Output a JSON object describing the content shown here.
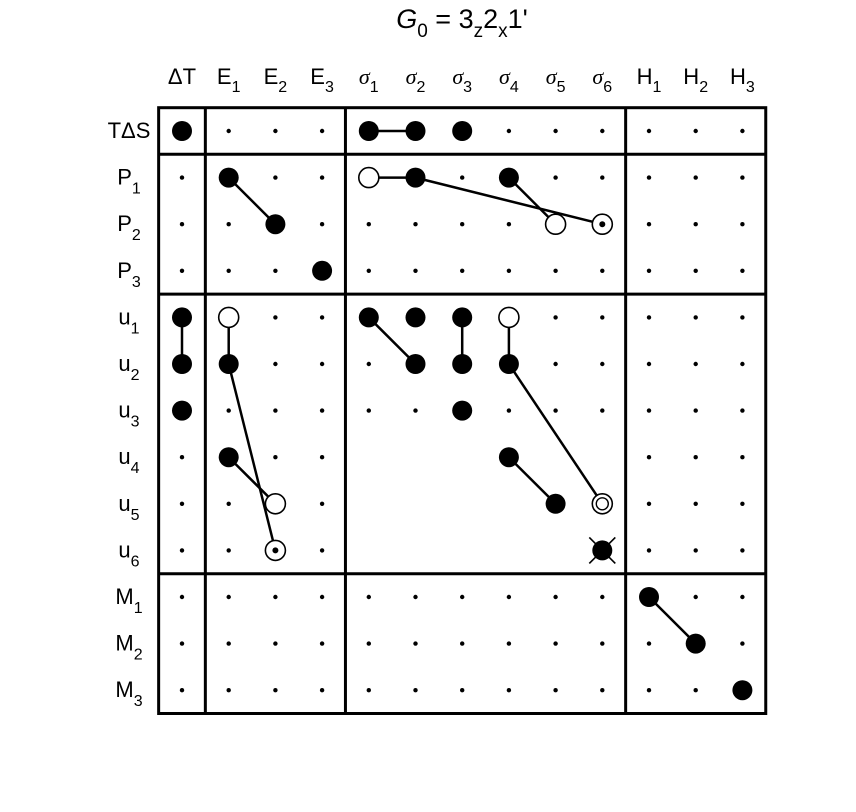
{
  "title": {
    "symbol": "G",
    "symbol_sub": "0",
    "equals": " = 3",
    "sub1": "z",
    "mid": "2",
    "sub2": "x",
    "tail": "1'"
  },
  "columns": [
    {
      "main": "ΔT",
      "sub": ""
    },
    {
      "main": "E",
      "sub": "1"
    },
    {
      "main": "E",
      "sub": "2"
    },
    {
      "main": "E",
      "sub": "3"
    },
    {
      "main": "σ",
      "sub": "1",
      "greek": true
    },
    {
      "main": "σ",
      "sub": "2",
      "greek": true
    },
    {
      "main": "σ",
      "sub": "3",
      "greek": true
    },
    {
      "main": "σ",
      "sub": "4",
      "greek": true
    },
    {
      "main": "σ",
      "sub": "5",
      "greek": true
    },
    {
      "main": "σ",
      "sub": "6",
      "greek": true
    },
    {
      "main": "H",
      "sub": "1"
    },
    {
      "main": "H",
      "sub": "2"
    },
    {
      "main": "H",
      "sub": "3"
    }
  ],
  "rows": [
    {
      "main": "TΔS",
      "sub": ""
    },
    {
      "main": "P",
      "sub": "1"
    },
    {
      "main": "P",
      "sub": "2"
    },
    {
      "main": "P",
      "sub": "3"
    },
    {
      "main": "u",
      "sub": "1"
    },
    {
      "main": "u",
      "sub": "2"
    },
    {
      "main": "u",
      "sub": "3"
    },
    {
      "main": "u",
      "sub": "4"
    },
    {
      "main": "u",
      "sub": "5"
    },
    {
      "main": "u",
      "sub": "6"
    },
    {
      "main": "M",
      "sub": "1"
    },
    {
      "main": "M",
      "sub": "2"
    },
    {
      "main": "M",
      "sub": "3"
    }
  ],
  "column_groups": [
    [
      0,
      0
    ],
    [
      1,
      3
    ],
    [
      4,
      9
    ],
    [
      10,
      12
    ]
  ],
  "row_groups": [
    [
      0,
      0
    ],
    [
      1,
      3
    ],
    [
      4,
      9
    ],
    [
      10,
      12
    ]
  ],
  "blank_cells": [
    [
      7,
      4
    ],
    [
      7,
      5
    ],
    [
      7,
      6
    ],
    [
      7,
      7
    ],
    [
      7,
      8
    ],
    [
      7,
      9
    ],
    [
      8,
      4
    ],
    [
      8,
      5
    ],
    [
      8,
      6
    ],
    [
      8,
      7
    ],
    [
      8,
      8
    ],
    [
      8,
      9
    ],
    [
      9,
      4
    ],
    [
      9,
      5
    ],
    [
      9,
      6
    ],
    [
      9,
      7
    ],
    [
      9,
      8
    ]
  ],
  "markers": [
    {
      "row": 0,
      "col": 0,
      "type": "filled"
    },
    {
      "row": 0,
      "col": 4,
      "type": "filled"
    },
    {
      "row": 0,
      "col": 5,
      "type": "filled"
    },
    {
      "row": 0,
      "col": 6,
      "type": "filled"
    },
    {
      "row": 1,
      "col": 1,
      "type": "filled"
    },
    {
      "row": 2,
      "col": 2,
      "type": "filled"
    },
    {
      "row": 3,
      "col": 3,
      "type": "filled"
    },
    {
      "row": 1,
      "col": 4,
      "type": "open"
    },
    {
      "row": 1,
      "col": 5,
      "type": "filled"
    },
    {
      "row": 1,
      "col": 7,
      "type": "filled"
    },
    {
      "row": 2,
      "col": 8,
      "type": "open"
    },
    {
      "row": 2,
      "col": 9,
      "type": "open-dot"
    },
    {
      "row": 4,
      "col": 0,
      "type": "filled"
    },
    {
      "row": 5,
      "col": 0,
      "type": "filled"
    },
    {
      "row": 6,
      "col": 0,
      "type": "filled"
    },
    {
      "row": 4,
      "col": 1,
      "type": "open"
    },
    {
      "row": 5,
      "col": 1,
      "type": "filled"
    },
    {
      "row": 7,
      "col": 1,
      "type": "filled"
    },
    {
      "row": 8,
      "col": 2,
      "type": "open"
    },
    {
      "row": 9,
      "col": 2,
      "type": "open-dot"
    },
    {
      "row": 4,
      "col": 4,
      "type": "filled"
    },
    {
      "row": 4,
      "col": 5,
      "type": "filled"
    },
    {
      "row": 4,
      "col": 6,
      "type": "filled"
    },
    {
      "row": 4,
      "col": 7,
      "type": "open"
    },
    {
      "row": 5,
      "col": 5,
      "type": "filled"
    },
    {
      "row": 5,
      "col": 6,
      "type": "filled"
    },
    {
      "row": 5,
      "col": 7,
      "type": "filled"
    },
    {
      "row": 6,
      "col": 6,
      "type": "filled"
    },
    {
      "row": 7,
      "col": 7,
      "type": "filled"
    },
    {
      "row": 8,
      "col": 8,
      "type": "filled"
    },
    {
      "row": 8,
      "col": 9,
      "type": "open-double"
    },
    {
      "row": 9,
      "col": 9,
      "type": "crossed"
    },
    {
      "row": 10,
      "col": 10,
      "type": "filled"
    },
    {
      "row": 11,
      "col": 11,
      "type": "filled"
    },
    {
      "row": 12,
      "col": 12,
      "type": "filled"
    }
  ],
  "links": [
    [
      [
        0,
        4
      ],
      [
        0,
        5
      ]
    ],
    [
      [
        1,
        1
      ],
      [
        2,
        2
      ]
    ],
    [
      [
        1,
        4
      ],
      [
        1,
        5
      ]
    ],
    [
      [
        1,
        5
      ],
      [
        2,
        9
      ]
    ],
    [
      [
        1,
        7
      ],
      [
        2,
        8
      ]
    ],
    [
      [
        4,
        0
      ],
      [
        5,
        0
      ]
    ],
    [
      [
        4,
        1
      ],
      [
        5,
        1
      ]
    ],
    [
      [
        5,
        1
      ],
      [
        9,
        2
      ]
    ],
    [
      [
        7,
        1
      ],
      [
        8,
        2
      ]
    ],
    [
      [
        4,
        4
      ],
      [
        5,
        5
      ]
    ],
    [
      [
        4,
        6
      ],
      [
        5,
        6
      ]
    ],
    [
      [
        4,
        7
      ],
      [
        5,
        7
      ]
    ],
    [
      [
        5,
        7
      ],
      [
        8,
        9
      ]
    ],
    [
      [
        7,
        7
      ],
      [
        8,
        8
      ]
    ],
    [
      [
        10,
        10
      ],
      [
        11,
        11
      ]
    ]
  ]
}
